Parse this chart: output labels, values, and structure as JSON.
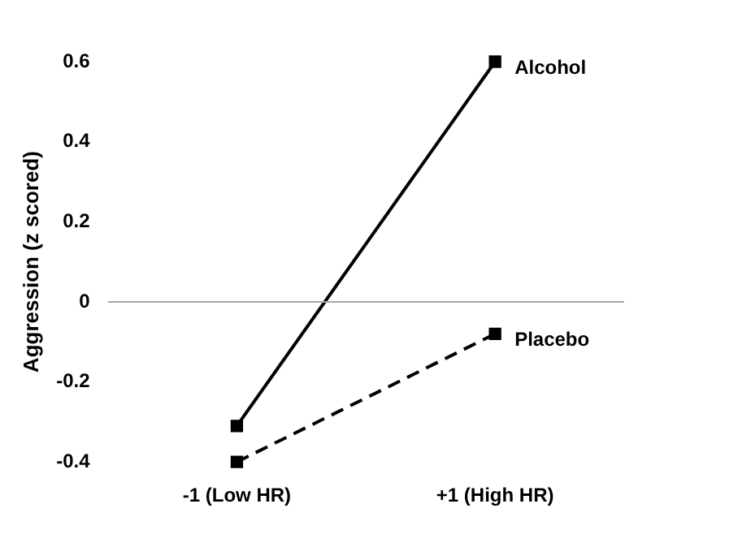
{
  "chart_data": {
    "type": "line",
    "ylabel": "Aggression (z scored)",
    "categories": [
      "-1 (Low HR)",
      "+1 (High HR)"
    ],
    "series": [
      {
        "name": "Alcohol",
        "color": "#000000",
        "values": [
          -0.31,
          0.6
        ],
        "line_style": "solid"
      },
      {
        "name": "Placebo",
        "color": "#000000",
        "values": [
          -0.4,
          -0.08
        ],
        "line_style": "dashed"
      }
    ],
    "ylim": [
      -0.4,
      0.6
    ],
    "yticks": [
      -0.4,
      -0.2,
      0,
      0.2,
      0.4,
      0.6
    ],
    "grid": false,
    "legend": false,
    "marker": "square",
    "ref_lines": [
      {
        "axis": "y",
        "value": 0,
        "color": "#a6a6a6"
      }
    ]
  }
}
